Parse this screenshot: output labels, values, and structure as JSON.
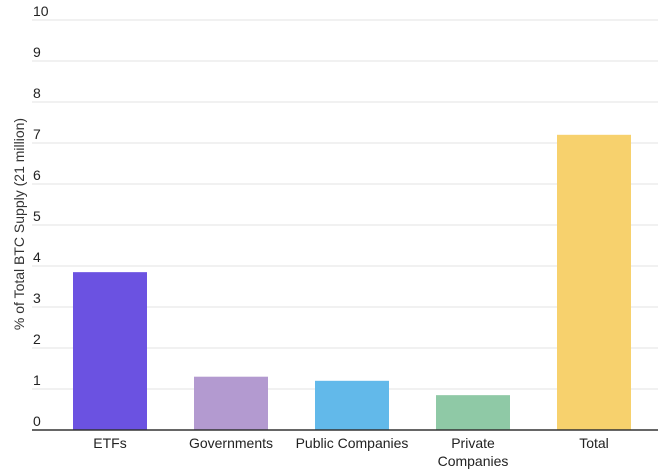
{
  "chart_data": {
    "type": "bar",
    "categories": [
      "ETFs",
      "Governments",
      "Public Companies",
      "Private\nCompanies",
      "Total"
    ],
    "values": [
      3.85,
      1.3,
      1.2,
      0.85,
      7.2
    ],
    "colors": [
      "#6b52e1",
      "#b39ad0",
      "#62b9ea",
      "#8fc9a6",
      "#f7d16d"
    ],
    "ylabel": "% of Total BTC Supply (21 million)",
    "xlabel": "",
    "ylim": [
      0,
      10
    ],
    "yticks": [
      0,
      1,
      2,
      3,
      4,
      5,
      6,
      7,
      8,
      9,
      10
    ],
    "grid": true
  }
}
